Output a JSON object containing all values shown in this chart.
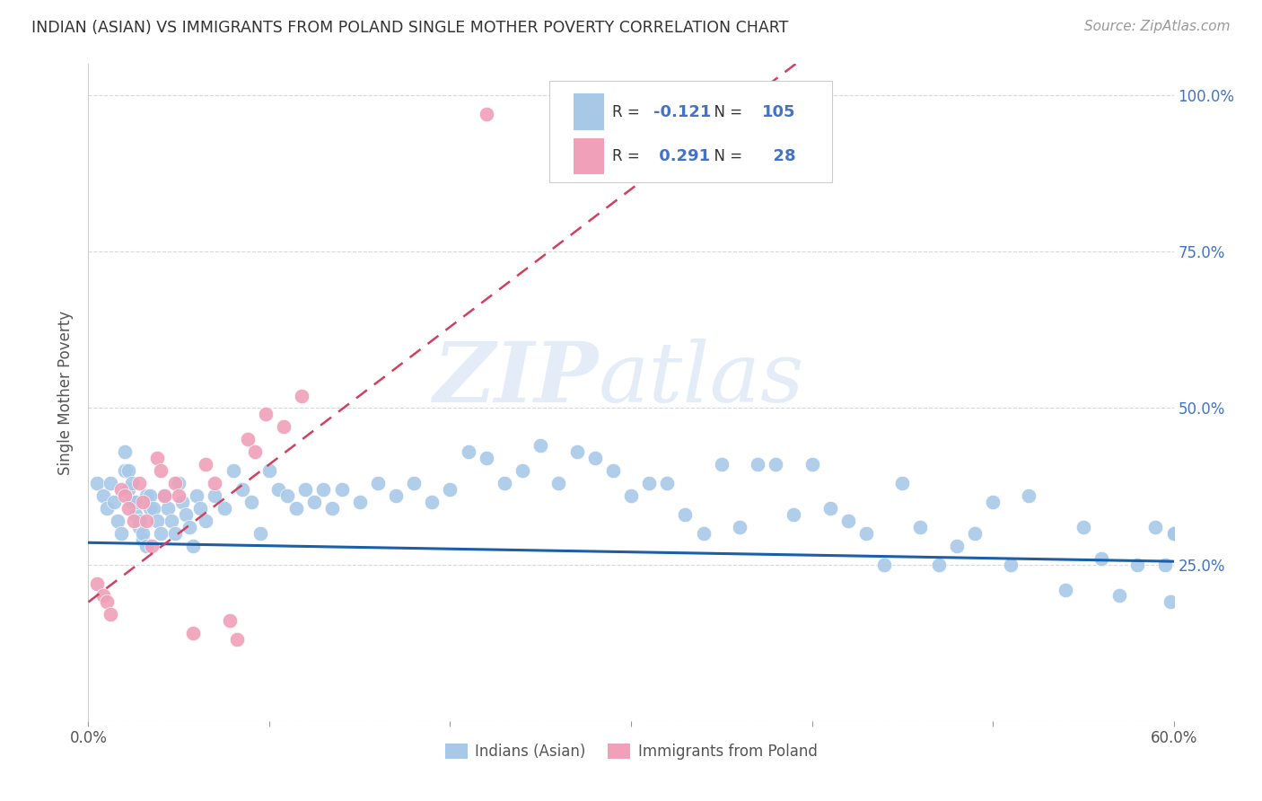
{
  "title": "INDIAN (ASIAN) VS IMMIGRANTS FROM POLAND SINGLE MOTHER POVERTY CORRELATION CHART",
  "source": "Source: ZipAtlas.com",
  "ylabel": "Single Mother Poverty",
  "watermark": "ZIPatlas",
  "legend_blue_R": "-0.121",
  "legend_blue_N": "105",
  "legend_pink_R": "0.291",
  "legend_pink_N": "28",
  "legend_label_blue": "Indians (Asian)",
  "legend_label_pink": "Immigrants from Poland",
  "xlim": [
    0.0,
    0.6
  ],
  "ylim": [
    0.0,
    1.05
  ],
  "ytick_pos": [
    0.0,
    0.25,
    0.5,
    0.75,
    1.0
  ],
  "ytick_labels_right": [
    "",
    "25.0%",
    "50.0%",
    "75.0%",
    "100.0%"
  ],
  "xtick_pos": [
    0.0,
    0.1,
    0.2,
    0.3,
    0.4,
    0.5,
    0.6
  ],
  "xtick_labels": [
    "0.0%",
    "",
    "",
    "",
    "",
    "",
    "60.0%"
  ],
  "blue_color": "#a8c8e8",
  "pink_color": "#f0a0b8",
  "line_blue_color": "#1a5fa8",
  "line_pink_color": "#d04060",
  "background_color": "#ffffff",
  "grid_color": "#d8d8d8",
  "blue_x": [
    0.005,
    0.008,
    0.01,
    0.012,
    0.014,
    0.016,
    0.018,
    0.02,
    0.022,
    0.024,
    0.026,
    0.028,
    0.03,
    0.032,
    0.034,
    0.02,
    0.022,
    0.024,
    0.026,
    0.028,
    0.03,
    0.032,
    0.034,
    0.036,
    0.038,
    0.04,
    0.042,
    0.044,
    0.046,
    0.048,
    0.05,
    0.052,
    0.054,
    0.056,
    0.058,
    0.06,
    0.062,
    0.065,
    0.07,
    0.075,
    0.08,
    0.085,
    0.09,
    0.095,
    0.1,
    0.105,
    0.11,
    0.115,
    0.12,
    0.125,
    0.13,
    0.135,
    0.14,
    0.15,
    0.16,
    0.17,
    0.18,
    0.19,
    0.2,
    0.21,
    0.22,
    0.23,
    0.24,
    0.25,
    0.26,
    0.27,
    0.28,
    0.29,
    0.3,
    0.31,
    0.32,
    0.33,
    0.34,
    0.35,
    0.36,
    0.37,
    0.38,
    0.39,
    0.4,
    0.41,
    0.42,
    0.43,
    0.44,
    0.45,
    0.46,
    0.47,
    0.48,
    0.49,
    0.5,
    0.51,
    0.52,
    0.54,
    0.55,
    0.56,
    0.57,
    0.58,
    0.59,
    0.595,
    0.598,
    0.6,
    0.6,
    0.6,
    0.6,
    0.6,
    0.6
  ],
  "blue_y": [
    0.38,
    0.36,
    0.34,
    0.38,
    0.35,
    0.32,
    0.3,
    0.4,
    0.37,
    0.35,
    0.33,
    0.31,
    0.29,
    0.36,
    0.34,
    0.43,
    0.4,
    0.38,
    0.35,
    0.32,
    0.3,
    0.28,
    0.36,
    0.34,
    0.32,
    0.3,
    0.36,
    0.34,
    0.32,
    0.3,
    0.38,
    0.35,
    0.33,
    0.31,
    0.28,
    0.36,
    0.34,
    0.32,
    0.36,
    0.34,
    0.4,
    0.37,
    0.35,
    0.3,
    0.4,
    0.37,
    0.36,
    0.34,
    0.37,
    0.35,
    0.37,
    0.34,
    0.37,
    0.35,
    0.38,
    0.36,
    0.38,
    0.35,
    0.37,
    0.43,
    0.42,
    0.38,
    0.4,
    0.44,
    0.38,
    0.43,
    0.42,
    0.4,
    0.36,
    0.38,
    0.38,
    0.33,
    0.3,
    0.41,
    0.31,
    0.41,
    0.41,
    0.33,
    0.41,
    0.34,
    0.32,
    0.3,
    0.25,
    0.38,
    0.31,
    0.25,
    0.28,
    0.3,
    0.35,
    0.25,
    0.36,
    0.21,
    0.31,
    0.26,
    0.2,
    0.25,
    0.31,
    0.25,
    0.19,
    0.3,
    0.3,
    0.3,
    0.3,
    0.3,
    0.3
  ],
  "pink_x": [
    0.005,
    0.008,
    0.01,
    0.012,
    0.018,
    0.02,
    0.022,
    0.025,
    0.028,
    0.03,
    0.032,
    0.035,
    0.038,
    0.04,
    0.042,
    0.048,
    0.05,
    0.058,
    0.065,
    0.07,
    0.078,
    0.082,
    0.088,
    0.092,
    0.098,
    0.108,
    0.118,
    0.22
  ],
  "pink_y": [
    0.22,
    0.2,
    0.19,
    0.17,
    0.37,
    0.36,
    0.34,
    0.32,
    0.38,
    0.35,
    0.32,
    0.28,
    0.42,
    0.4,
    0.36,
    0.38,
    0.36,
    0.14,
    0.41,
    0.38,
    0.16,
    0.13,
    0.45,
    0.43,
    0.49,
    0.47,
    0.52,
    0.97
  ],
  "pink_line_slope": 2.2,
  "pink_line_intercept": 0.19,
  "blue_line_slope": -0.05,
  "blue_line_intercept": 0.285
}
